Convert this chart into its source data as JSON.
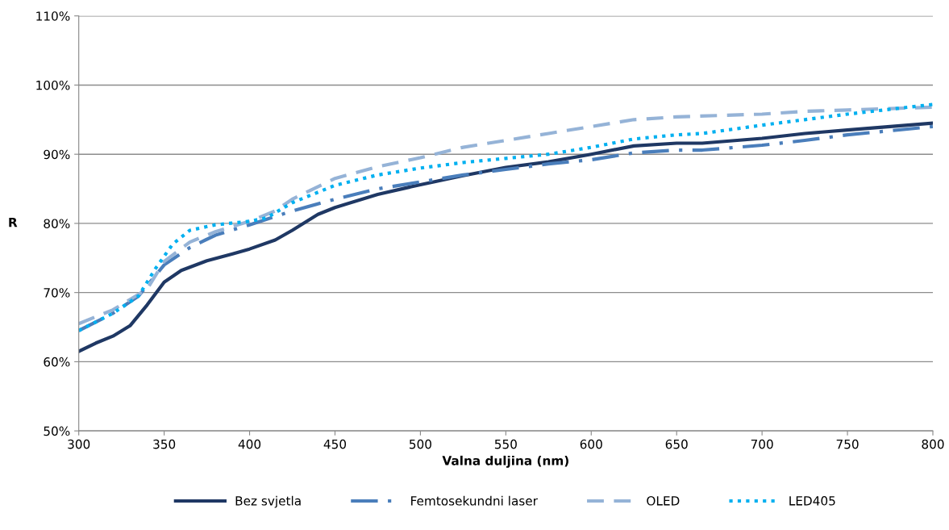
{
  "chart_data": {
    "type": "line",
    "xlabel": "Valna duljina (nm)",
    "ylabel": "R",
    "xlim": [
      300,
      800
    ],
    "xticks": [
      300,
      350,
      400,
      450,
      500,
      550,
      600,
      650,
      700,
      750,
      800
    ],
    "ylim": [
      50,
      110
    ],
    "yticks": [
      {
        "value": 50,
        "label": "50%"
      },
      {
        "value": 60,
        "label": "60%"
      },
      {
        "value": 70,
        "label": "70%"
      },
      {
        "value": 80,
        "label": "80%"
      },
      {
        "value": 90,
        "label": "90%"
      },
      {
        "value": 100,
        "label": "100%"
      },
      {
        "value": 110,
        "label": "110%"
      }
    ],
    "grid": "y",
    "legend": "bottom",
    "marker": "none",
    "series": [
      {
        "name": "Bez svjetla",
        "color": "#1f3864",
        "line_style": "solid",
        "x": [
          300,
          310,
          320,
          330,
          340,
          350,
          360,
          375,
          390,
          400,
          415,
          425,
          440,
          450,
          475,
          500,
          525,
          550,
          575,
          600,
          625,
          650,
          665,
          700,
          725,
          750,
          775,
          800
        ],
        "values": [
          61.5,
          62.7,
          63.7,
          65.2,
          68.2,
          71.5,
          73.2,
          74.6,
          75.6,
          76.3,
          77.6,
          79.0,
          81.3,
          82.3,
          84.2,
          85.6,
          86.9,
          88.1,
          88.9,
          90.0,
          91.2,
          91.6,
          91.6,
          92.3,
          93.0,
          93.5,
          94.0,
          94.5
        ]
      },
      {
        "name": "Femtosekundni laser",
        "color": "#4a7ebb",
        "line_style": "dashdot",
        "x": [
          300,
          320,
          335,
          350,
          365,
          380,
          400,
          425,
          450,
          475,
          500,
          525,
          550,
          575,
          600,
          625,
          650,
          665,
          700,
          725,
          750,
          775,
          800
        ],
        "values": [
          64.5,
          67.0,
          69.5,
          74.0,
          76.5,
          78.3,
          79.8,
          81.8,
          83.5,
          85.0,
          86.0,
          87.0,
          87.8,
          88.6,
          89.2,
          90.2,
          90.6,
          90.6,
          91.3,
          92.0,
          92.8,
          93.4,
          94.0
        ]
      },
      {
        "name": "OLED",
        "color": "#95b3d7",
        "line_style": "dashed",
        "x": [
          300,
          320,
          340,
          350,
          365,
          380,
          400,
          415,
          425,
          450,
          475,
          500,
          525,
          550,
          575,
          600,
          625,
          650,
          675,
          700,
          725,
          750,
          775,
          800
        ],
        "values": [
          65.5,
          67.5,
          70.5,
          74.5,
          77.3,
          78.8,
          80.3,
          81.8,
          83.5,
          86.5,
          88.2,
          89.5,
          91.0,
          92.0,
          93.0,
          94.0,
          95.0,
          95.4,
          95.6,
          95.8,
          96.2,
          96.4,
          96.6,
          96.8
        ]
      },
      {
        "name": "LED405",
        "color": "#00b0f0",
        "line_style": "dotted",
        "x": [
          300,
          320,
          335,
          345,
          355,
          365,
          380,
          400,
          410,
          425,
          450,
          475,
          500,
          525,
          550,
          575,
          600,
          625,
          650,
          665,
          700,
          725,
          750,
          775,
          800
        ],
        "values": [
          64.5,
          67.0,
          69.5,
          73.5,
          77.0,
          79.0,
          79.8,
          80.3,
          80.8,
          83.0,
          85.5,
          87.0,
          88.0,
          88.8,
          89.4,
          90.0,
          91.0,
          92.2,
          92.8,
          93.0,
          94.2,
          95.0,
          95.8,
          96.5,
          97.2
        ]
      }
    ]
  }
}
